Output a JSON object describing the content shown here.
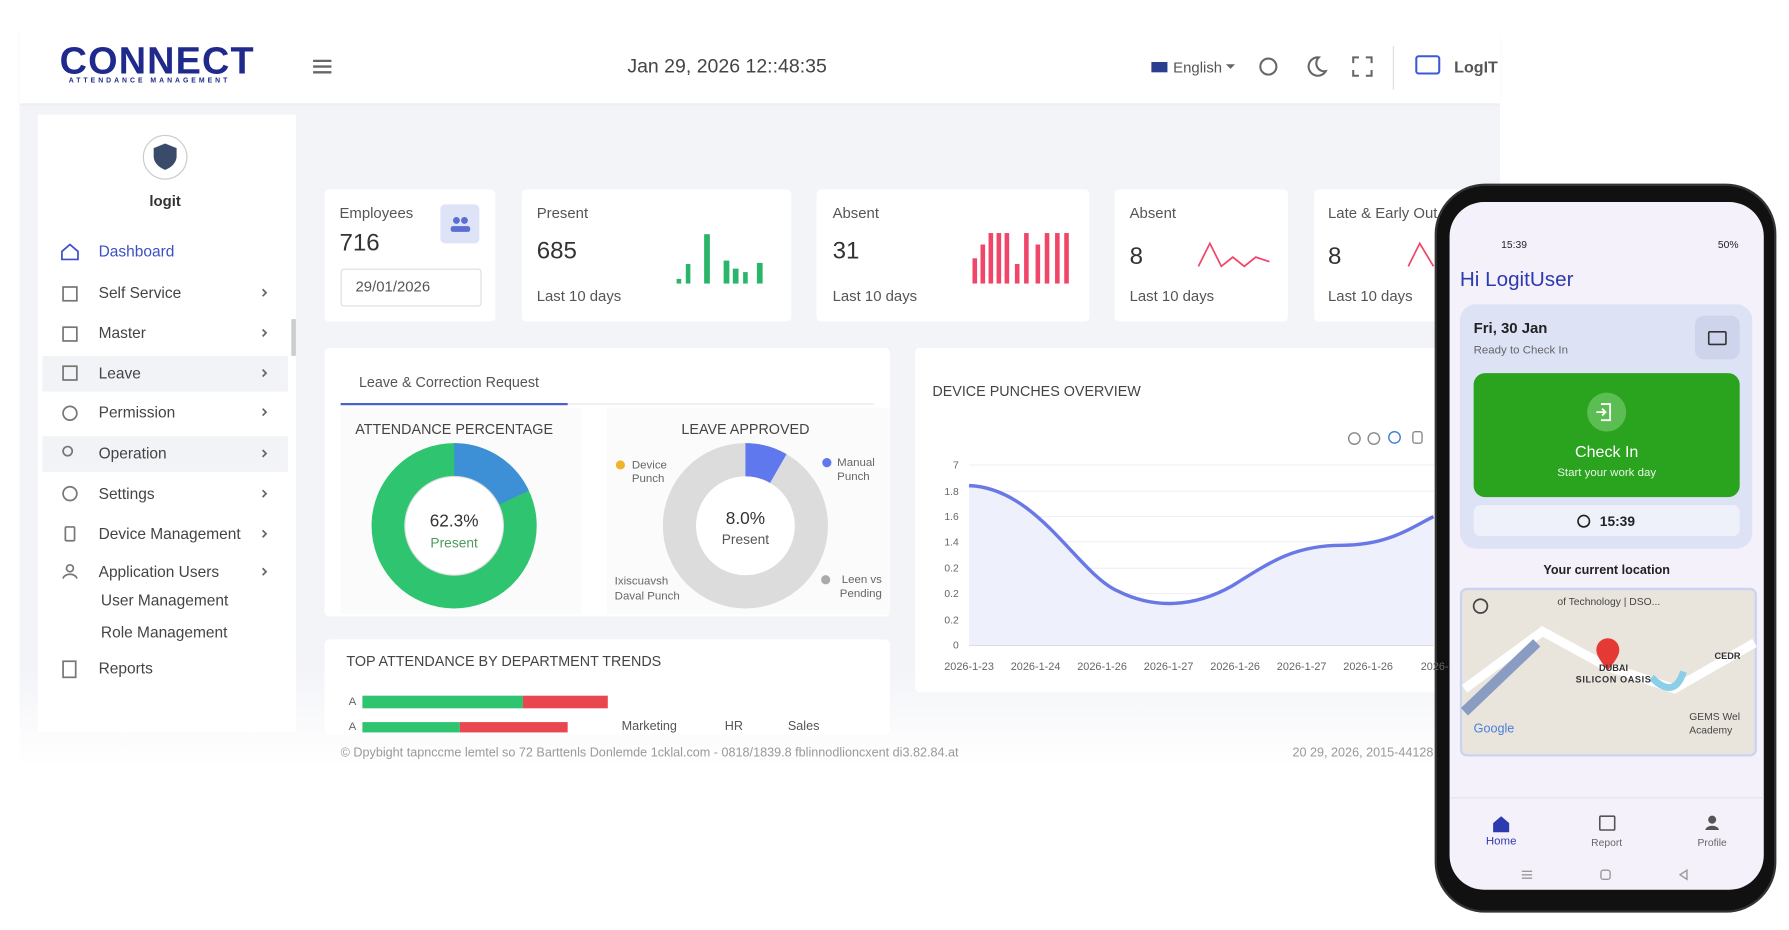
{
  "header": {
    "logo": "CONNECT",
    "logo_sub": "ATTENDANCE MANAGEMENT",
    "datetime": "Jan 29, 2026 12::48:35",
    "language": "English",
    "user": "LogIT"
  },
  "sidebar": {
    "username": "logit",
    "menu": [
      "Dashboard",
      "Self Service",
      "Master",
      "Leave",
      "Permission",
      "Operation",
      "Settings",
      "Device Management",
      "Application Users"
    ],
    "submenu": [
      "User Management",
      "Role Management"
    ],
    "reports": "Reports"
  },
  "cards": [
    {
      "label": "Employees",
      "value": "716",
      "date": "29/01/2026"
    },
    {
      "label": "Present",
      "value": "685",
      "note": "Last 10 days"
    },
    {
      "label": "Absent",
      "value": "31",
      "note": "Last 10 days"
    },
    {
      "label": "Absent",
      "value": "8",
      "note": "Last 10 days"
    },
    {
      "label": "Late & Early Out",
      "value": "8",
      "note": "Last 10 days"
    }
  ],
  "leave_panel": {
    "tab": "Leave & Correction Request",
    "attendance": {
      "title": "ATTENDANCE PERCENTAGE",
      "value": "62.3%",
      "caption": "Present"
    },
    "leave_approved": {
      "title": "LEAVE APPROVED",
      "value": "8.0%",
      "caption": "Present",
      "legend": [
        "Device Punch",
        "Manual Punch",
        "Ixiscuavsh Daval Punch",
        "Leen vs Pending"
      ]
    }
  },
  "department_panel": {
    "title": "TOP ATTENDANCE BY DEPARTMENT TRENDS",
    "rows": [
      "A",
      "A"
    ],
    "columns": [
      "Marketing",
      "HR",
      "Sales"
    ]
  },
  "device_panel": {
    "title": "DEVICE PUNCHES OVERVIEW",
    "yticks": [
      "7",
      "1.8",
      "1.6",
      "1.4",
      "0.2",
      "0.2",
      "0.2",
      "0"
    ],
    "xticks": [
      "2026-1-23",
      "2026-1-24",
      "2026-1-26",
      "2026-1-27",
      "2026-1-26",
      "2026-1-27",
      "2026-1-26",
      "2026-"
    ]
  },
  "footer": {
    "copyright": "© Dpybight tapnccme lemtel so 72 Barttenls Donlemde 1cklal.com - 0818/1839.8 fblinnodlioncxent di3.82.84.at",
    "timestamp": "20 29, 2026, 2015-44128"
  },
  "phone": {
    "status_time": "15:39",
    "battery": "50%",
    "greeting": "Hi LogitUser",
    "date": "Fri, 30 Jan",
    "status": "Ready to Check In",
    "button": "Check In",
    "button_sub": "Start your work day",
    "clock": "15:39",
    "location_title": "Your current location",
    "map_labels": [
      "of Technology | DSO...",
      "DUBAI",
      "SILICON OASIS",
      "CEDR",
      "GEMS Wel",
      "Academy",
      "Google"
    ],
    "nav": [
      "Home",
      "Report",
      "Profile"
    ]
  }
}
